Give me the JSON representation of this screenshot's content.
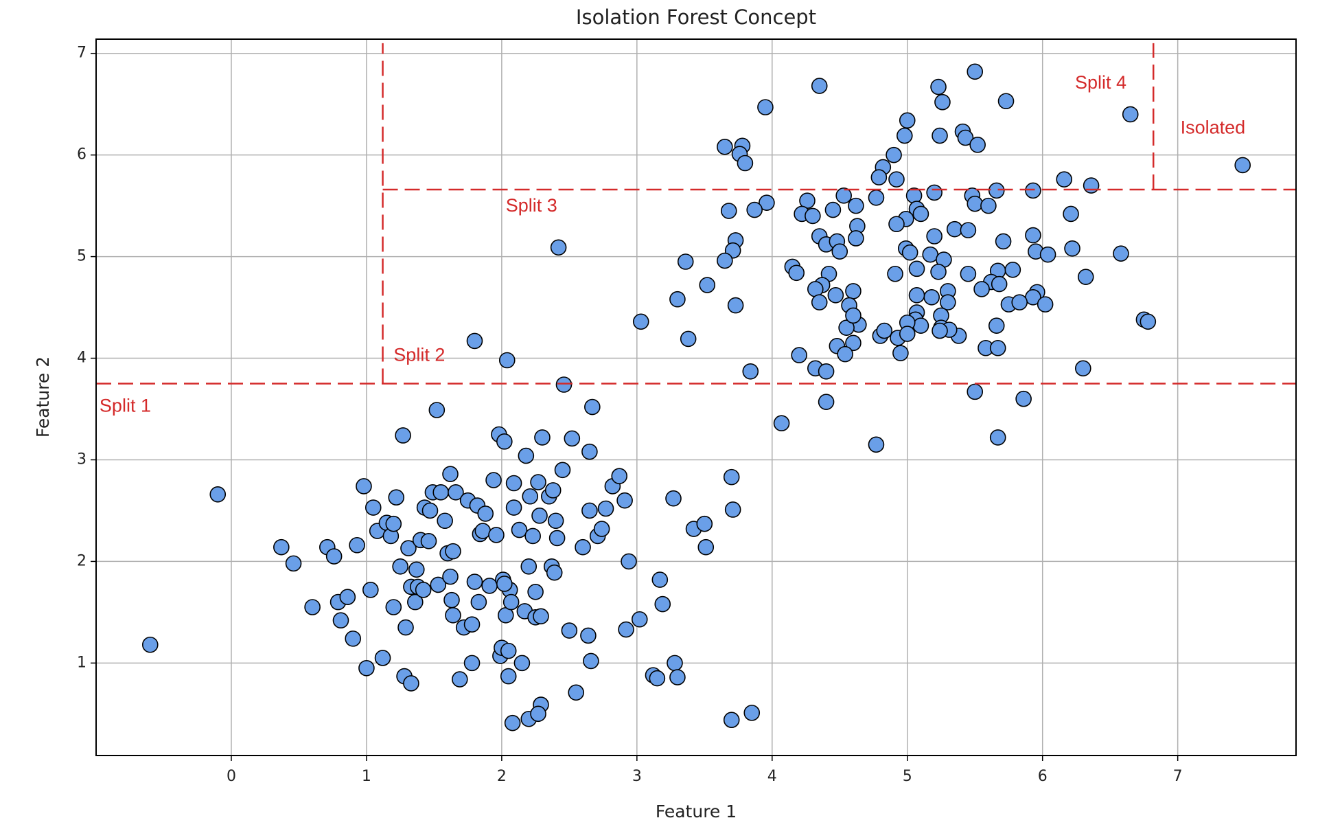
{
  "chart_data": {
    "type": "scatter",
    "title": "Isolation Forest Concept",
    "x_label": "Feature 1",
    "y_label": "Feature 2",
    "xlim": [
      -1,
      7.875
    ],
    "ylim": [
      0.09,
      7.14
    ],
    "xticks": [
      0,
      1,
      2,
      3,
      4,
      5,
      6,
      7
    ],
    "yticks": [
      1,
      2,
      3,
      4,
      5,
      6,
      7
    ],
    "grid": true,
    "color": "#6a9fe8",
    "edge_color": "#000000",
    "split_color": "#d42a2a",
    "x": [
      7.48,
      6.65,
      5.5,
      4.35,
      3.95,
      5.23,
      5.26,
      5.73,
      5.0,
      4.98,
      5.24,
      5.41,
      5.43,
      5.52,
      3.65,
      3.78,
      3.76,
      3.8,
      4.9,
      4.82,
      4.79,
      4.92,
      6.16,
      6.36,
      5.93,
      5.66,
      5.2,
      5.05,
      4.53,
      4.26,
      3.96,
      3.87,
      3.68,
      4.45,
      4.62,
      4.77,
      5.48,
      5.5,
      5.6,
      5.07,
      5.1,
      4.22,
      4.3,
      4.99,
      6.21,
      4.92,
      4.63,
      5.35,
      5.45,
      5.93,
      5.2,
      4.35,
      4.4,
      4.62,
      4.48,
      5.71,
      3.73,
      2.42,
      3.71,
      4.5,
      4.99,
      5.02,
      5.17,
      5.27,
      5.95,
      6.04,
      6.22,
      6.58,
      3.65,
      3.36,
      4.15,
      4.18,
      4.42,
      4.91,
      5.07,
      5.23,
      5.45,
      5.67,
      5.78,
      6.32,
      3.52,
      4.37,
      5.62,
      5.68,
      4.32,
      4.6,
      5.3,
      5.18,
      5.07,
      5.96,
      5.93,
      4.47,
      3.73,
      3.3,
      4.35,
      4.57,
      5.3,
      5.75,
      5.83,
      6.02,
      5.55,
      5.07,
      5.25,
      5.06,
      5.25,
      5.1,
      5.0,
      4.64,
      4.55,
      4.6,
      5.38,
      5.31,
      4.8,
      4.83,
      4.93,
      5.0,
      5.24,
      6.75,
      6.78,
      5.66,
      3.03,
      3.38,
      4.48,
      4.6,
      4.54,
      4.95,
      4.2,
      5.58,
      5.67,
      6.3,
      4.32,
      4.4,
      3.84,
      5.5,
      5.86,
      4.4,
      4.07,
      4.77,
      5.67,
      1.8,
      2.04,
      2.46,
      -0.6,
      -0.1,
      0.37,
      0.46,
      0.6,
      0.71,
      0.76,
      0.79,
      0.81,
      0.86,
      0.9,
      0.93,
      0.98,
      1.0,
      1.03,
      1.05,
      1.08,
      1.12,
      1.15,
      1.18,
      1.2,
      1.2,
      1.22,
      1.25,
      1.27,
      1.28,
      1.29,
      1.31,
      1.33,
      1.33,
      1.36,
      1.37,
      1.38,
      1.4,
      1.42,
      1.43,
      1.46,
      1.47,
      1.49,
      1.52,
      1.53,
      1.55,
      1.58,
      1.6,
      1.62,
      1.62,
      1.63,
      1.64,
      1.64,
      1.66,
      1.69,
      1.72,
      1.75,
      1.78,
      1.78,
      1.8,
      1.82,
      1.83,
      1.84,
      1.86,
      1.88,
      1.91,
      1.94,
      1.96,
      1.98,
      1.99,
      2.0,
      2.01,
      2.02,
      2.03,
      2.05,
      2.05,
      2.06,
      2.07,
      2.08,
      2.09,
      2.09,
      2.13,
      2.15,
      2.17,
      2.18,
      2.2,
      2.2,
      2.21,
      2.23,
      2.25,
      2.25,
      2.27,
      2.28,
      2.29,
      2.29,
      2.3,
      2.35,
      2.37,
      2.38,
      2.39,
      2.4,
      2.41,
      2.45,
      2.5,
      2.52,
      2.55,
      2.6,
      2.64,
      2.65,
      2.65,
      2.66,
      2.67,
      2.71,
      2.74,
      2.77,
      2.82,
      2.87,
      2.91,
      2.92,
      2.94,
      3.02,
      3.12,
      3.15,
      3.17,
      3.19,
      3.27,
      3.28,
      3.3,
      3.42,
      3.5,
      3.51,
      3.7,
      3.71,
      3.7,
      3.85,
      2.27,
      2.02
    ],
    "values": [
      5.9,
      6.4,
      6.82,
      6.68,
      6.47,
      6.67,
      6.52,
      6.53,
      6.34,
      6.19,
      6.19,
      6.23,
      6.17,
      6.1,
      6.08,
      6.09,
      6.01,
      5.92,
      6.0,
      5.88,
      5.78,
      5.76,
      5.76,
      5.7,
      5.65,
      5.65,
      5.63,
      5.6,
      5.6,
      5.55,
      5.53,
      5.46,
      5.45,
      5.46,
      5.5,
      5.58,
      5.6,
      5.52,
      5.5,
      5.47,
      5.42,
      5.42,
      5.4,
      5.37,
      5.42,
      5.32,
      5.3,
      5.27,
      5.26,
      5.21,
      5.2,
      5.2,
      5.12,
      5.18,
      5.15,
      5.15,
      5.16,
      5.09,
      5.06,
      5.05,
      5.08,
      5.04,
      5.02,
      4.97,
      5.05,
      5.02,
      5.08,
      5.03,
      4.96,
      4.95,
      4.9,
      4.84,
      4.83,
      4.83,
      4.88,
      4.85,
      4.83,
      4.86,
      4.87,
      4.8,
      4.72,
      4.72,
      4.75,
      4.73,
      4.68,
      4.66,
      4.66,
      4.6,
      4.62,
      4.65,
      4.6,
      4.62,
      4.52,
      4.58,
      4.55,
      4.52,
      4.55,
      4.53,
      4.55,
      4.53,
      4.68,
      4.45,
      4.42,
      4.38,
      4.3,
      4.32,
      4.35,
      4.33,
      4.3,
      4.42,
      4.22,
      4.28,
      4.22,
      4.27,
      4.2,
      4.24,
      4.27,
      4.38,
      4.36,
      4.32,
      4.36,
      4.19,
      4.12,
      4.15,
      4.04,
      4.05,
      4.03,
      4.1,
      4.1,
      3.9,
      3.9,
      3.87,
      3.87,
      3.67,
      3.6,
      3.57,
      3.36,
      3.15,
      3.22,
      4.17,
      3.98,
      3.74,
      1.18,
      2.66,
      2.14,
      1.98,
      1.55,
      2.14,
      2.05,
      1.6,
      1.42,
      1.65,
      1.24,
      2.16,
      2.74,
      0.95,
      1.72,
      2.53,
      2.3,
      1.05,
      2.38,
      2.25,
      2.37,
      1.55,
      2.63,
      1.95,
      3.24,
      0.87,
      1.35,
      2.13,
      0.8,
      1.75,
      1.6,
      1.92,
      1.75,
      2.21,
      1.72,
      2.53,
      2.2,
      2.5,
      2.68,
      3.49,
      1.77,
      2.68,
      2.4,
      2.08,
      2.86,
      1.85,
      1.62,
      2.1,
      1.47,
      2.68,
      0.84,
      1.35,
      2.6,
      1.0,
      1.38,
      1.8,
      2.55,
      1.6,
      2.27,
      2.3,
      2.47,
      1.76,
      2.8,
      2.26,
      3.25,
      1.07,
      1.15,
      1.82,
      3.18,
      1.47,
      1.12,
      0.87,
      1.72,
      1.6,
      0.41,
      2.53,
      2.77,
      2.31,
      1.0,
      1.51,
      3.04,
      0.45,
      1.95,
      2.64,
      2.25,
      1.45,
      1.7,
      2.78,
      2.45,
      1.46,
      0.59,
      3.22,
      2.64,
      1.95,
      2.7,
      1.89,
      2.4,
      2.23,
      2.9,
      1.32,
      3.21,
      0.71,
      2.14,
      1.27,
      3.08,
      2.5,
      1.02,
      3.52,
      2.25,
      2.32,
      2.52,
      2.74,
      2.84,
      2.6,
      1.33,
      2.0,
      1.43,
      0.88,
      0.85,
      1.82,
      1.58,
      2.62,
      1.0,
      0.86,
      2.32,
      2.37,
      2.14,
      2.83,
      2.51,
      0.44,
      0.51,
      0.5,
      1.78
    ],
    "splits": [
      {
        "label": "Split 1",
        "orientation": "horizontal",
        "value": 3.75,
        "from": -1,
        "to": 7.875,
        "label_x": -0.975,
        "label_y": 3.52
      },
      {
        "label": "Split 2",
        "orientation": "vertical",
        "value": 1.12,
        "from": 3.75,
        "to": 7.1,
        "label_x": 1.2,
        "label_y": 4.02
      },
      {
        "label": "Split 3",
        "orientation": "horizontal",
        "value": 5.66,
        "from": 1.12,
        "to": 7.875,
        "label_x": 2.03,
        "label_y": 5.49
      },
      {
        "label": "Split 4",
        "orientation": "vertical",
        "value": 6.82,
        "from": 5.66,
        "to": 7.1,
        "label_x": 6.24,
        "label_y": 6.7
      }
    ],
    "annotations": [
      {
        "text": "Isolated",
        "x": 7.02,
        "y": 6.26
      }
    ]
  }
}
